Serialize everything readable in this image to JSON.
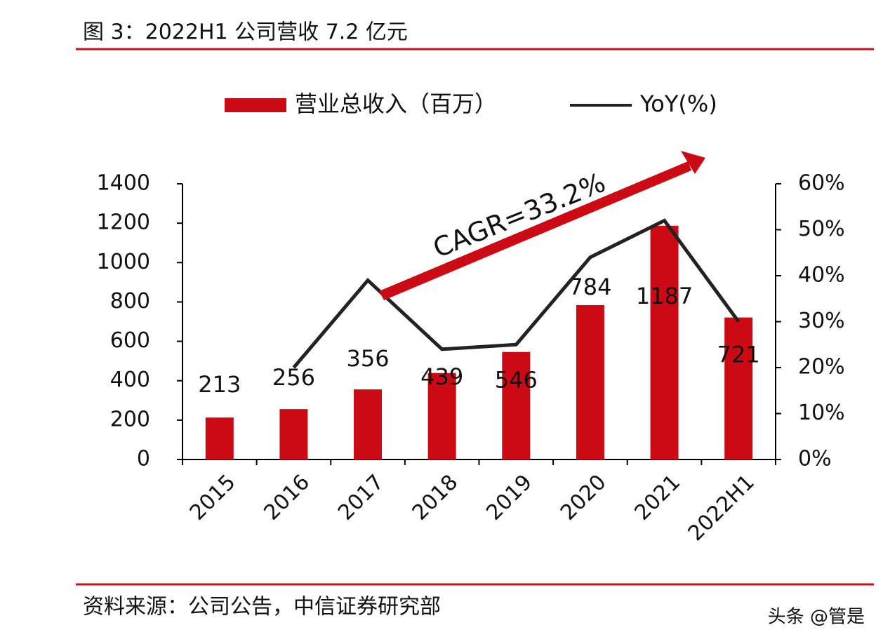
{
  "chart_data": {
    "type": "bar",
    "title": "图 3：2022H1 公司营收 7.2 亿元",
    "categories": [
      "2015",
      "2016",
      "2017",
      "2018",
      "2019",
      "2020",
      "2021",
      "2022H1"
    ],
    "series": [
      {
        "name": "营业总收入（百万）",
        "type": "bar",
        "color": "#cc0a14",
        "values": [
          213,
          256,
          356,
          439,
          546,
          784,
          1187,
          721
        ]
      },
      {
        "name": "YoY(%)",
        "type": "line",
        "axis": "y2",
        "color": "#222222",
        "values": [
          null,
          20,
          39,
          24,
          25,
          44,
          52,
          30
        ]
      }
    ],
    "ylim": [
      0,
      1400
    ],
    "yticks": [
      0,
      200,
      400,
      600,
      800,
      1000,
      1200,
      1400
    ],
    "y2lim": [
      0,
      60
    ],
    "y2ticks": [
      {
        "value": 0,
        "label": "0%"
      },
      {
        "value": 10,
        "label": "10%"
      },
      {
        "value": 20,
        "label": "20%"
      },
      {
        "value": 30,
        "label": "30%"
      },
      {
        "value": 40,
        "label": "40%"
      },
      {
        "value": 50,
        "label": "50%"
      },
      {
        "value": 60,
        "label": "60%"
      }
    ],
    "annotation": "CAGR=33.2%",
    "source": "资料来源：公司公告，中信证券研究部",
    "watermark": "头条 @管是"
  }
}
